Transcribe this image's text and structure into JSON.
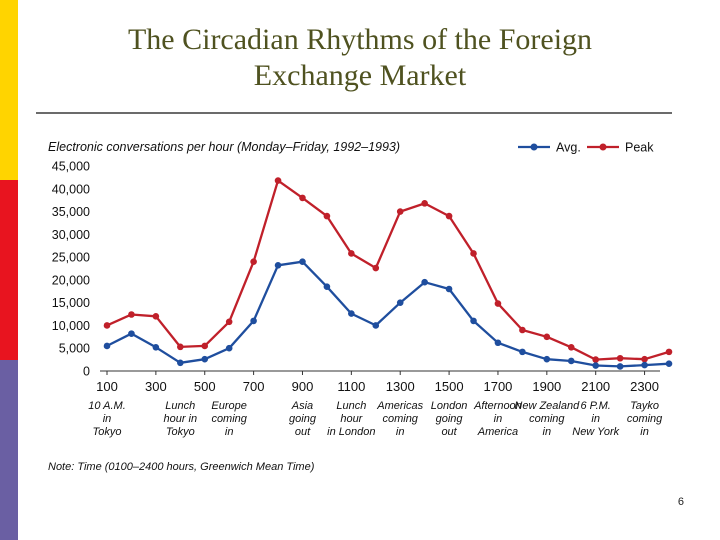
{
  "slide": {
    "title_line1": "The Circadian Rhythms  of the Foreign",
    "title_line2": "Exchange Market",
    "number": "6",
    "colors": {
      "accent_top": "#FFD400",
      "accent_mid": "#E8141F",
      "accent_bottom": "#6A5FA3",
      "title": "#4F5220"
    }
  },
  "chart_data": {
    "type": "line",
    "title": "Electronic conversations per hour (Monday–Friday, 1992–1993)",
    "note": "Note: Time (0100–2400 hours, Greenwich Mean Time)",
    "ylim": [
      0,
      45000
    ],
    "y_ticks": [
      "0",
      "5,000",
      "10,000",
      "15,000",
      "20,000",
      "25,000",
      "30,000",
      "35,000",
      "40,000",
      "45,000"
    ],
    "x_tick_labels": [
      "100",
      "300",
      "500",
      "700",
      "900",
      "1100",
      "1300",
      "1500",
      "1700",
      "1900",
      "2100",
      "2300"
    ],
    "x": [
      100,
      200,
      300,
      400,
      500,
      600,
      700,
      800,
      900,
      1000,
      1100,
      1200,
      1300,
      1400,
      1500,
      1600,
      1700,
      1800,
      1900,
      2000,
      2100,
      2200,
      2300,
      2400
    ],
    "series": [
      {
        "name": "Avg.",
        "color": "#1F4E9E",
        "values": [
          5500,
          8200,
          5200,
          1800,
          2600,
          5000,
          11000,
          23200,
          24000,
          18500,
          12600,
          10000,
          15000,
          19500,
          18000,
          11000,
          6200,
          4200,
          2600,
          2200,
          1200,
          1000,
          1300,
          1600
        ]
      },
      {
        "name": "Peak",
        "color": "#C0202A",
        "values": [
          10000,
          12400,
          12000,
          5300,
          5500,
          10800,
          24000,
          41800,
          38000,
          34000,
          25800,
          22600,
          35000,
          36800,
          34000,
          25800,
          14800,
          9000,
          7500,
          5200,
          2500,
          2800,
          2600,
          4200
        ]
      }
    ],
    "annotations": [
      {
        "x": 100,
        "lines": [
          "10 A.M.",
          "in",
          "Tokyo"
        ]
      },
      {
        "x": 400,
        "lines": [
          "Lunch",
          "hour in",
          "Tokyo"
        ]
      },
      {
        "x": 600,
        "lines": [
          "Europe",
          "coming",
          "in"
        ]
      },
      {
        "x": 900,
        "lines": [
          "Asia",
          "going",
          "out"
        ]
      },
      {
        "x": 1100,
        "lines": [
          "Lunch",
          "hour",
          "in London"
        ]
      },
      {
        "x": 1300,
        "lines": [
          "Americas",
          "coming",
          "in"
        ]
      },
      {
        "x": 1500,
        "lines": [
          "London",
          "going",
          "out"
        ]
      },
      {
        "x": 1700,
        "lines": [
          "Afternoon",
          "in",
          "America"
        ]
      },
      {
        "x": 1900,
        "lines": [
          "New Zealand",
          "coming",
          "in"
        ]
      },
      {
        "x": 2100,
        "lines": [
          "6 P.M.",
          "in",
          "New York"
        ]
      },
      {
        "x": 2300,
        "lines": [
          "Tayko",
          "coming",
          "in"
        ]
      }
    ],
    "legend_position": "top-right",
    "grid": false
  }
}
